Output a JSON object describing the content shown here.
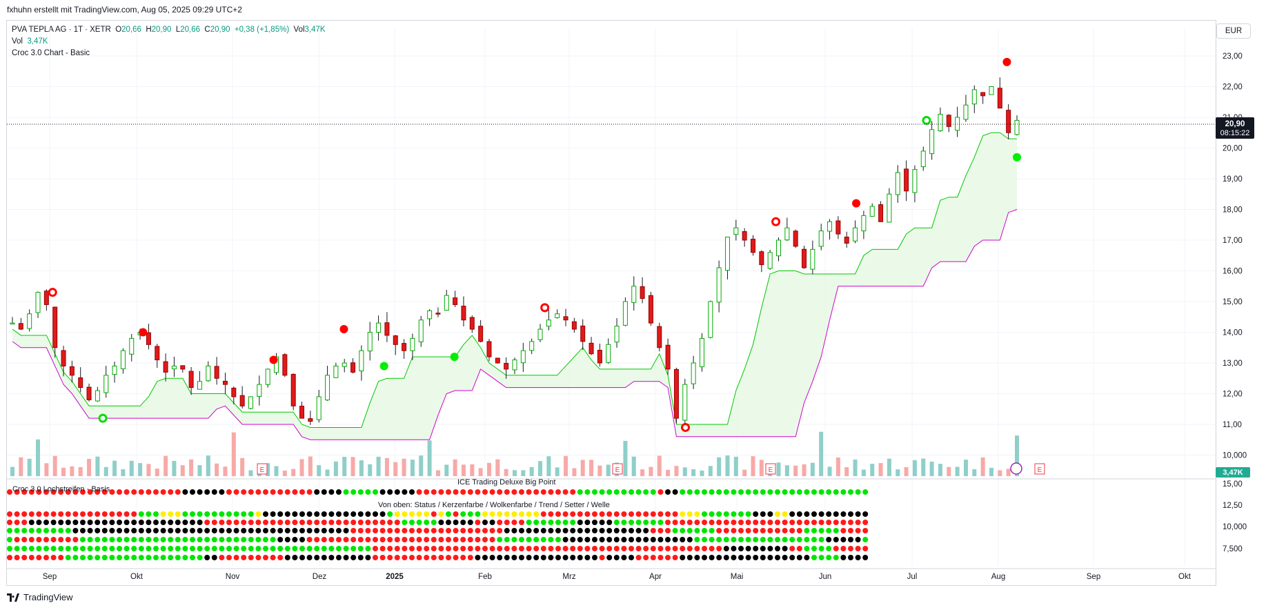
{
  "header": {
    "creator_line": "fxhuhn erstellt mit TradingView.com, Aug 05, 2025 09:29 UTC+2"
  },
  "legend": {
    "symbol": "PVA TEPLA AG · 1T · XETR",
    "o_label": "O",
    "o_value": "20,66",
    "h_label": "H",
    "h_value": "20,90",
    "l_label": "L",
    "l_value": "20,66",
    "c_label": "C",
    "c_value": "20,90",
    "change": "+0,38 (+1,85%)",
    "vol_label": "Vol",
    "vol_value": "3,47K",
    "vol_line_label": "Vol",
    "vol_line_value": "3,47K",
    "indicator": "Croc 3.0 Chart - Basic"
  },
  "currency": "EUR",
  "price_badge": {
    "price": "20,90",
    "countdown": "08:15:22"
  },
  "volume_badge": "3,47K",
  "footer": {
    "brand": "TradingView"
  },
  "panes": {
    "lochstreifen_label": "Croc 3.0 Lochstreifen - Basis",
    "big_point_label": "ICE Trading Deluxe Big Point",
    "rows_label": "Von oben: Status / Kerzenfarbe / Wolkenfarbe / Trend / Setter / Welle"
  },
  "colors": {
    "up": "#089981",
    "down": "#f23645",
    "cloud_green": "#4caf50",
    "cloud_pink": "#e040fb",
    "dot_green": "#00e600",
    "dot_red": "#ff1a1a",
    "dot_black": "#000000",
    "dot_yellow": "#ffee00"
  },
  "chart_data": {
    "type": "candlestick",
    "price_axis": [
      "23,00",
      "22,00",
      "21,00",
      "20,00",
      "19,00",
      "18,00",
      "17,00",
      "16,00",
      "15,00",
      "14,00",
      "13,00",
      "12,00",
      "11,00",
      "10,000"
    ],
    "lower_axis": [
      "15,00",
      "12,50",
      "10,000",
      "7,500"
    ],
    "x_ticks": [
      "Sep",
      "Okt",
      "Nov",
      "Dez",
      "2025",
      "Feb",
      "Mrz",
      "Apr",
      "Mai",
      "Jun",
      "Jul",
      "Aug",
      "Sep",
      "Okt"
    ],
    "ylim": [
      10,
      23
    ],
    "last_close": 20.9,
    "anchors": [
      14.3,
      14.1,
      14.6,
      15.3,
      14.9,
      13.5,
      12.9,
      12.6,
      12.2,
      11.8,
      12.1,
      12.6,
      12.9,
      13.4,
      13.8,
      14.0,
      13.6,
      13.1,
      12.7,
      12.9,
      12.8,
      12.2,
      12.4,
      12.9,
      12.5,
      12.3,
      11.9,
      11.6,
      11.9,
      12.3,
      12.8,
      13.2,
      12.6,
      11.6,
      11.2,
      11.1,
      11.9,
      12.6,
      12.9,
      13.0,
      12.7,
      13.4,
      14.0,
      14.3,
      13.9,
      13.6,
      13.4,
      13.8,
      14.4,
      14.7,
      14.6,
      15.2,
      14.9,
      14.4,
      14.1,
      13.7,
      13.2,
      13.0,
      12.8,
      13.1,
      13.4,
      13.7,
      14.1,
      14.4,
      14.6,
      14.4,
      14.1,
      13.7,
      13.3,
      13.0,
      13.6,
      14.2,
      15.0,
      15.5,
      15.1,
      14.3,
      13.5,
      12.8,
      11.2,
      12.3,
      13.0,
      13.8,
      15.0,
      16.1,
      17.1,
      17.4,
      17.0,
      16.6,
      16.2,
      16.6,
      17.0,
      17.4,
      16.8,
      16.1,
      16.7,
      17.3,
      17.6,
      17.2,
      16.9,
      17.4,
      17.8,
      18.1,
      17.6,
      18.5,
      19.2,
      18.6,
      19.3,
      19.9,
      20.6,
      21.1,
      20.7,
      21.0,
      21.4,
      21.9,
      21.7,
      22.0,
      21.3,
      20.5,
      20.9
    ]
  },
  "markers": [
    {
      "x": 0.04,
      "price": 15.3,
      "type": "ring-red"
    },
    {
      "x": 0.13,
      "price": 14.0,
      "type": "dot-red"
    },
    {
      "x": 0.26,
      "price": 13.1,
      "type": "dot-red"
    },
    {
      "x": 0.33,
      "price": 14.1,
      "type": "dot-red"
    },
    {
      "x": 0.53,
      "price": 14.8,
      "type": "ring-red"
    },
    {
      "x": 0.67,
      "price": 10.9,
      "type": "ring-red"
    },
    {
      "x": 0.76,
      "price": 17.6,
      "type": "ring-red"
    },
    {
      "x": 0.84,
      "price": 18.2,
      "type": "dot-red"
    },
    {
      "x": 0.99,
      "price": 22.8,
      "type": "dot-red"
    },
    {
      "x": 0.37,
      "price": 12.9,
      "type": "dot-green"
    },
    {
      "x": 0.44,
      "price": 13.2,
      "type": "dot-green"
    },
    {
      "x": 0.91,
      "price": 20.9,
      "type": "ring-green"
    },
    {
      "x": 1.0,
      "price": 19.7,
      "type": "dot-green"
    },
    {
      "x": 0.09,
      "price": 11.2,
      "type": "ring-green"
    }
  ]
}
